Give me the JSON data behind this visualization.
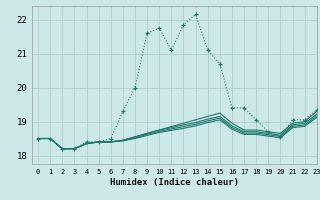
{
  "xlabel": "Humidex (Indice chaleur)",
  "ylabel": "",
  "background_color": "#cde8e8",
  "grid_color": "#aecece",
  "line_color": "#1e7a6e",
  "xlim": [
    -0.5,
    23
  ],
  "ylim": [
    17.75,
    22.4
  ],
  "yticks": [
    18,
    19,
    20,
    21,
    22
  ],
  "xticks": [
    0,
    1,
    2,
    3,
    4,
    5,
    6,
    7,
    8,
    9,
    10,
    11,
    12,
    13,
    14,
    15,
    16,
    17,
    18,
    19,
    20,
    21,
    22,
    23
  ],
  "series_dotted": [
    18.5,
    18.5,
    18.2,
    18.2,
    18.4,
    18.4,
    18.5,
    19.3,
    20.0,
    21.6,
    21.75,
    21.1,
    21.85,
    22.15,
    21.1,
    20.7,
    19.4,
    19.4,
    19.05,
    18.7,
    18.55,
    19.05,
    19.05,
    19.35
  ],
  "series_solid": [
    [
      18.5,
      18.5,
      18.2,
      18.2,
      18.35,
      18.4,
      18.4,
      18.45,
      18.55,
      18.65,
      18.75,
      18.85,
      18.95,
      19.05,
      19.15,
      19.25,
      18.95,
      18.75,
      18.75,
      18.7,
      18.65,
      18.95,
      19.0,
      19.3
    ],
    [
      18.5,
      18.5,
      18.2,
      18.2,
      18.35,
      18.4,
      18.4,
      18.45,
      18.55,
      18.65,
      18.75,
      18.82,
      18.9,
      18.97,
      19.07,
      19.15,
      18.87,
      18.7,
      18.7,
      18.65,
      18.6,
      18.9,
      18.95,
      19.22
    ],
    [
      18.5,
      18.5,
      18.2,
      18.2,
      18.35,
      18.4,
      18.4,
      18.44,
      18.52,
      18.62,
      18.71,
      18.78,
      18.85,
      18.92,
      19.02,
      19.1,
      18.82,
      18.66,
      18.66,
      18.61,
      18.56,
      18.86,
      18.9,
      19.17
    ],
    [
      18.5,
      18.5,
      18.2,
      18.2,
      18.35,
      18.4,
      18.4,
      18.43,
      18.5,
      18.59,
      18.68,
      18.74,
      18.8,
      18.87,
      18.97,
      19.05,
      18.77,
      18.62,
      18.62,
      18.57,
      18.52,
      18.82,
      18.86,
      19.12
    ]
  ]
}
